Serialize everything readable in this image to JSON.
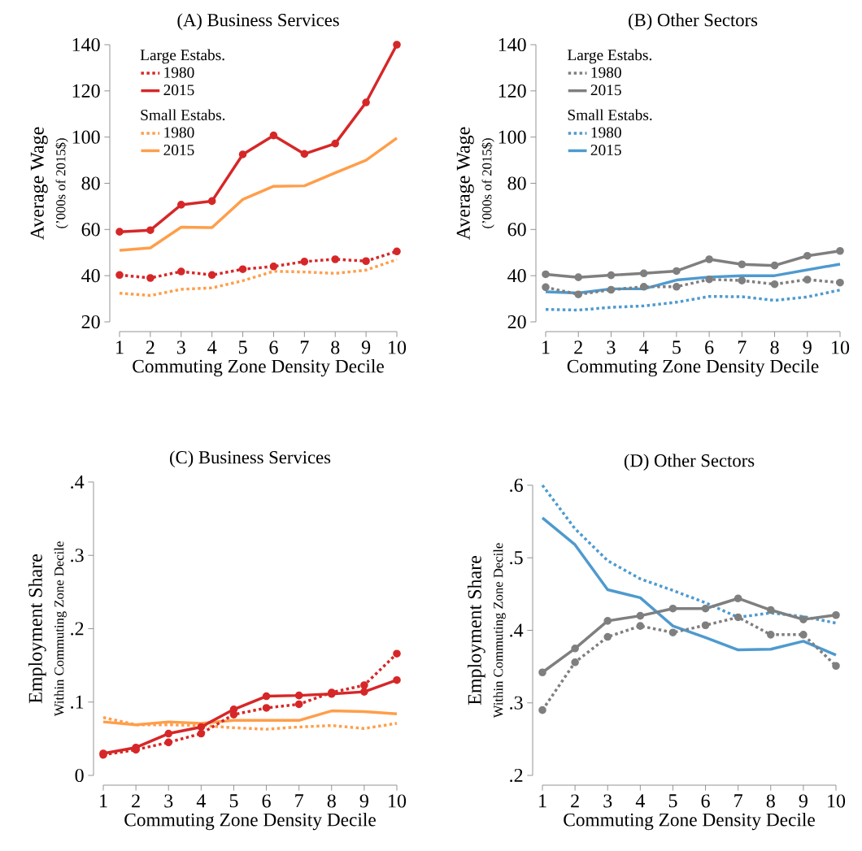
{
  "chart_data": [
    {
      "type": "line",
      "title": "(A) Business Services",
      "xlabel": "Commuting Zone Density Decile",
      "ylabel": "Average Wage",
      "annotations": [
        "(’000s of 2015$)",
        "Large Estabs.",
        "Small Estabs."
      ],
      "x": [
        1,
        2,
        3,
        4,
        5,
        6,
        7,
        8,
        9,
        10
      ],
      "xlim": [
        1,
        10
      ],
      "xticks": [
        1,
        2,
        3,
        4,
        5,
        6,
        7,
        8,
        9,
        10
      ],
      "ylim": [
        20,
        140
      ],
      "yticks": [
        20,
        40,
        60,
        80,
        100,
        120,
        140
      ],
      "legend": "top left",
      "series": [
        {
          "name": "1980",
          "color": "#d62728",
          "marker": "circle",
          "line_style": "dotted",
          "values": [
            40.3,
            39,
            41.8,
            40.3,
            42.8,
            44,
            46.1,
            47.1,
            46.3,
            50.5
          ]
        },
        {
          "name": "2015",
          "color": "#d62728",
          "marker": "circle",
          "line_style": "solid",
          "values": [
            59,
            59.7,
            70.7,
            72.3,
            92.5,
            100.7,
            92.7,
            97.2,
            115,
            140
          ]
        },
        {
          "name": "1980",
          "color": "#ff9e4a",
          "marker": "none",
          "line_style": "dotted",
          "values": [
            32.4,
            31.4,
            34.1,
            34.7,
            37.8,
            41.9,
            41.6,
            41,
            42.4,
            47
          ]
        },
        {
          "name": "2015",
          "color": "#ff9e4a",
          "marker": "none",
          "line_style": "solid",
          "values": [
            51,
            52,
            61,
            60.8,
            73,
            78.7,
            78.9,
            84.5,
            90,
            99.6
          ]
        }
      ]
    },
    {
      "type": "line",
      "title": "(B) Other Sectors",
      "xlabel": "Commuting Zone Density Decile",
      "ylabel": "Average Wage",
      "annotations": [
        "(’000s of 2015$)",
        "Large Estabs.",
        "Small Estabs."
      ],
      "x": [
        1,
        2,
        3,
        4,
        5,
        6,
        7,
        8,
        9,
        10
      ],
      "xlim": [
        1,
        10
      ],
      "xticks": [
        1,
        2,
        3,
        4,
        5,
        6,
        7,
        8,
        9,
        10
      ],
      "ylim": [
        20,
        140
      ],
      "yticks": [
        20,
        40,
        60,
        80,
        100,
        120,
        140
      ],
      "legend": "top left",
      "series": [
        {
          "name": "1980",
          "color": "#7f7f7f",
          "marker": "circle",
          "line_style": "dotted",
          "values": [
            35,
            31.9,
            33.9,
            35.2,
            35.2,
            38.4,
            37.9,
            36.3,
            38.3,
            37
          ]
        },
        {
          "name": "2015",
          "color": "#7f7f7f",
          "marker": "circle",
          "line_style": "solid",
          "values": [
            40.6,
            39.3,
            40.2,
            41,
            42,
            47.1,
            44.9,
            44.4,
            48.6,
            50.7
          ]
        },
        {
          "name": "1980",
          "color": "#4e9acf",
          "marker": "none",
          "line_style": "dotted",
          "values": [
            25.4,
            25.1,
            26.3,
            26.9,
            28.5,
            31,
            30.9,
            29.3,
            30.8,
            33.8
          ]
        },
        {
          "name": "2015",
          "color": "#4e9acf",
          "marker": "none",
          "line_style": "solid",
          "values": [
            33,
            32.5,
            34.3,
            34.3,
            38.1,
            39.4,
            40,
            40,
            42.5,
            45
          ]
        }
      ]
    },
    {
      "type": "line",
      "title": "(C) Business Services",
      "xlabel": "Commuting Zone Density Decile",
      "ylabel": "Employment Share",
      "annotations": [
        "Within Commuting Zone Decile"
      ],
      "x": [
        1,
        2,
        3,
        4,
        5,
        6,
        7,
        8,
        9,
        10
      ],
      "xlim": [
        1,
        10
      ],
      "xticks": [
        1,
        2,
        3,
        4,
        5,
        6,
        7,
        8,
        9,
        10
      ],
      "ylim": [
        0,
        0.4
      ],
      "yticks": [
        0,
        {
          "value": 0.1,
          "label": ".1"
        },
        {
          "value": 0.2,
          "label": ".2"
        },
        {
          "value": 0.3,
          "label": ".3"
        },
        {
          "value": 0.4,
          "label": ".4"
        }
      ],
      "series": [
        {
          "color": "#d62728",
          "marker": "circle",
          "line_style": "dotted",
          "values": [
            0.028,
            0.035,
            0.045,
            0.057,
            0.083,
            0.092,
            0.097,
            0.113,
            0.123,
            0.166
          ]
        },
        {
          "color": "#d62728",
          "marker": "circle",
          "line_style": "solid",
          "values": [
            0.03,
            0.038,
            0.057,
            0.066,
            0.09,
            0.108,
            0.109,
            0.111,
            0.114,
            0.13
          ]
        },
        {
          "color": "#ff9e4a",
          "marker": "none",
          "line_style": "dotted",
          "values": [
            0.079,
            0.069,
            0.069,
            0.068,
            0.065,
            0.063,
            0.066,
            0.068,
            0.064,
            0.071
          ]
        },
        {
          "color": "#ff9e4a",
          "marker": "none",
          "line_style": "solid",
          "values": [
            0.073,
            0.069,
            0.073,
            0.071,
            0.075,
            0.075,
            0.075,
            0.088,
            0.087,
            0.084
          ]
        }
      ]
    },
    {
      "type": "line",
      "title": "(D) Other Sectors",
      "xlabel": "Commuting Zone Density Decile",
      "ylabel": "Employment Share",
      "annotations": [
        "Within Commuting Zone Decile"
      ],
      "x": [
        1,
        2,
        3,
        4,
        5,
        6,
        7,
        8,
        9,
        10
      ],
      "xlim": [
        1,
        10
      ],
      "xticks": [
        1,
        2,
        3,
        4,
        5,
        6,
        7,
        8,
        9,
        10
      ],
      "ylim": [
        0.2,
        0.6
      ],
      "yticks": [
        {
          "value": 0.2,
          "label": ".2"
        },
        {
          "value": 0.3,
          "label": ".3"
        },
        {
          "value": 0.4,
          "label": ".4"
        },
        {
          "value": 0.5,
          "label": ".5"
        },
        {
          "value": 0.6,
          "label": ".6"
        }
      ],
      "series": [
        {
          "color": "#7f7f7f",
          "marker": "circle",
          "line_style": "dotted",
          "values": [
            0.29,
            0.356,
            0.391,
            0.406,
            0.397,
            0.407,
            0.418,
            0.394,
            0.394,
            0.351
          ]
        },
        {
          "color": "#7f7f7f",
          "marker": "circle",
          "line_style": "solid",
          "values": [
            0.342,
            0.375,
            0.413,
            0.42,
            0.43,
            0.43,
            0.444,
            0.428,
            0.415,
            0.421
          ]
        },
        {
          "color": "#4e9acf",
          "marker": "none",
          "line_style": "dotted",
          "values": [
            0.6,
            0.54,
            0.496,
            0.471,
            0.455,
            0.438,
            0.418,
            0.424,
            0.419,
            0.41
          ]
        },
        {
          "color": "#4e9acf",
          "marker": "none",
          "line_style": "solid",
          "values": [
            0.555,
            0.518,
            0.456,
            0.445,
            0.406,
            0.39,
            0.373,
            0.374,
            0.385,
            0.366
          ]
        }
      ]
    }
  ]
}
